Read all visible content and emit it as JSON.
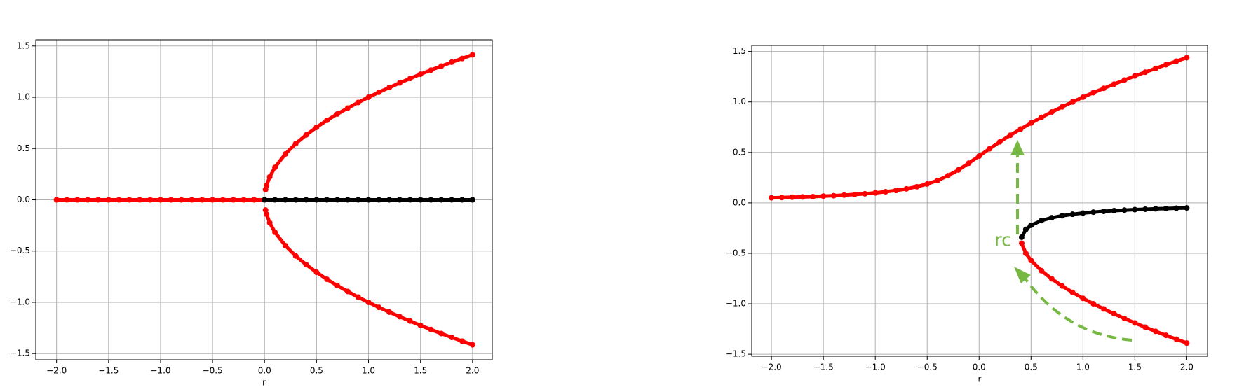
{
  "chart_data": [
    {
      "type": "scatter",
      "xlabel": "r",
      "grid": true,
      "xlim": [
        -2.2,
        2.19
      ],
      "ylim": [
        -1.56,
        1.56
      ],
      "xticks": [
        {
          "value": -2,
          "label": "−2.0"
        },
        {
          "value": -1.5,
          "label": "−1.5"
        },
        {
          "value": -1,
          "label": "−1.0"
        },
        {
          "value": -0.5,
          "label": "−0.5"
        },
        {
          "value": 0,
          "label": "0.0"
        },
        0.5,
        {
          "value": 1,
          "label": "1.0"
        },
        1.5,
        {
          "value": 2,
          "label": "2.0"
        }
      ],
      "yticks": [
        {
          "value": -1.5,
          "label": "−1.5"
        },
        {
          "value": -1,
          "label": "−1.0"
        },
        {
          "value": -0.5,
          "label": "−0.5"
        },
        {
          "value": 0,
          "label": "0.0"
        },
        0.5,
        {
          "value": 1,
          "label": "1.0"
        },
        1.5
      ],
      "series": [
        {
          "color": "#ff0000",
          "x": [
            -2,
            -1.9,
            -1.8,
            -1.7,
            -1.6,
            -1.5,
            -1.4,
            -1.3,
            -1.2,
            -1.1,
            -1,
            -0.9,
            -0.8,
            -0.7,
            -0.6,
            -0.5,
            -0.4,
            -0.3,
            -0.2,
            -0.1,
            0
          ],
          "values": [
            0,
            0,
            0,
            0,
            0,
            0,
            0,
            0,
            0,
            0,
            0,
            0,
            0,
            0,
            0,
            0,
            0,
            0,
            0,
            0,
            0
          ]
        },
        {
          "color": "#000000",
          "x": [
            0,
            0.1,
            0.2,
            0.3,
            0.4,
            0.5,
            0.6,
            0.7,
            0.8,
            0.9,
            1,
            1.1,
            1.2,
            1.3,
            1.4,
            1.5,
            1.6,
            1.7,
            1.8,
            1.9,
            2
          ],
          "values": [
            0,
            0,
            0,
            0,
            0,
            0,
            0,
            0,
            0,
            0,
            0,
            0,
            0,
            0,
            0,
            0,
            0,
            0,
            0,
            0,
            0
          ]
        },
        {
          "color": "#ff0000",
          "x": [
            0.01,
            0.02,
            0.05,
            0.1,
            0.2,
            0.3,
            0.4,
            0.5,
            0.6,
            0.7,
            0.8,
            0.9,
            1,
            1.1,
            1.2,
            1.3,
            1.4,
            1.5,
            1.6,
            1.7,
            1.8,
            1.9,
            2
          ],
          "values": [
            0.1,
            0.141,
            0.224,
            0.316,
            0.447,
            0.548,
            0.632,
            0.707,
            0.775,
            0.837,
            0.894,
            0.949,
            1,
            1.049,
            1.095,
            1.14,
            1.183,
            1.225,
            1.265,
            1.304,
            1.342,
            1.378,
            1.414
          ]
        },
        {
          "color": "#ff0000",
          "x": [
            0.01,
            0.02,
            0.05,
            0.1,
            0.2,
            0.3,
            0.4,
            0.5,
            0.6,
            0.7,
            0.8,
            0.9,
            1,
            1.1,
            1.2,
            1.3,
            1.4,
            1.5,
            1.6,
            1.7,
            1.8,
            1.9,
            2
          ],
          "values": [
            -0.1,
            -0.141,
            -0.224,
            -0.316,
            -0.447,
            -0.548,
            -0.632,
            -0.707,
            -0.775,
            -0.837,
            -0.894,
            -0.949,
            -1,
            -1.049,
            -1.095,
            -1.14,
            -1.183,
            -1.225,
            -1.265,
            -1.304,
            -1.342,
            -1.378,
            -1.414
          ]
        }
      ]
    },
    {
      "type": "scatter",
      "xlabel": "r",
      "grid": true,
      "annotation": "rc",
      "annotation_color": "#77b843",
      "xlim": [
        -2.19,
        2.2
      ],
      "ylim": [
        -1.52,
        1.56
      ],
      "xticks": [
        {
          "value": -2,
          "label": "−2.0"
        },
        {
          "value": -1.5,
          "label": "−1.5"
        },
        {
          "value": -1,
          "label": "−1.0"
        },
        {
          "value": -0.5,
          "label": "−0.5"
        },
        {
          "value": 0,
          "label": "0.0"
        },
        0.5,
        {
          "value": 1,
          "label": "1.0"
        },
        1.5,
        {
          "value": 2,
          "label": "2.0"
        }
      ],
      "yticks": [
        {
          "value": -1.5,
          "label": "−1.5"
        },
        {
          "value": -1,
          "label": "−1.0"
        },
        {
          "value": -0.5,
          "label": "−0.5"
        },
        {
          "value": 0,
          "label": "0.0"
        },
        0.5,
        {
          "value": 1,
          "label": "1.0"
        },
        1.5
      ],
      "series": [
        {
          "color": "#ff0000",
          "x": [
            -2,
            -1.9,
            -1.8,
            -1.7,
            -1.6,
            -1.5,
            -1.4,
            -1.3,
            -1.2,
            -1.1,
            -1,
            -0.9,
            -0.8,
            -0.7,
            -0.6,
            -0.5,
            -0.4,
            -0.3,
            -0.2,
            -0.1,
            0,
            0.1,
            0.2,
            0.3,
            0.4,
            0.5,
            0.6,
            0.7,
            0.8,
            0.9,
            1,
            1.1,
            1.2,
            1.3,
            1.4,
            1.5,
            1.6,
            1.7,
            1.8,
            1.9,
            2
          ],
          "values": [
            0.05,
            0.053,
            0.056,
            0.059,
            0.062,
            0.067,
            0.071,
            0.077,
            0.083,
            0.09,
            0.099,
            0.11,
            0.123,
            0.139,
            0.16,
            0.187,
            0.222,
            0.269,
            0.326,
            0.393,
            0.464,
            0.536,
            0.605,
            0.67,
            0.732,
            0.791,
            0.847,
            0.901,
            0.951,
            1.0,
            1.047,
            1.092,
            1.135,
            1.177,
            1.217,
            1.257,
            1.295,
            1.332,
            1.369,
            1.404,
            1.439
          ]
        },
        {
          "color": "#000000",
          "x": [
            0.41,
            0.45,
            0.5,
            0.6,
            0.7,
            0.8,
            0.9,
            1,
            1.1,
            1.2,
            1.3,
            1.4,
            1.5,
            1.6,
            1.7,
            1.8,
            1.9,
            2
          ],
          "values": [
            -0.34,
            -0.263,
            -0.222,
            -0.176,
            -0.147,
            -0.128,
            -0.113,
            -0.101,
            -0.092,
            -0.084,
            -0.077,
            -0.072,
            -0.067,
            -0.063,
            -0.059,
            -0.056,
            -0.053,
            -0.05
          ]
        },
        {
          "color": "#ff0000",
          "x": [
            0.41,
            0.45,
            0.5,
            0.6,
            0.7,
            0.8,
            0.9,
            1,
            1.1,
            1.2,
            1.3,
            1.4,
            1.5,
            1.6,
            1.7,
            1.8,
            1.9,
            2
          ],
          "values": [
            -0.4,
            -0.5,
            -0.57,
            -0.672,
            -0.753,
            -0.824,
            -0.887,
            -0.946,
            -1.0,
            -1.051,
            -1.099,
            -1.146,
            -1.19,
            -1.232,
            -1.273,
            -1.313,
            -1.351,
            -1.389
          ]
        }
      ]
    }
  ]
}
